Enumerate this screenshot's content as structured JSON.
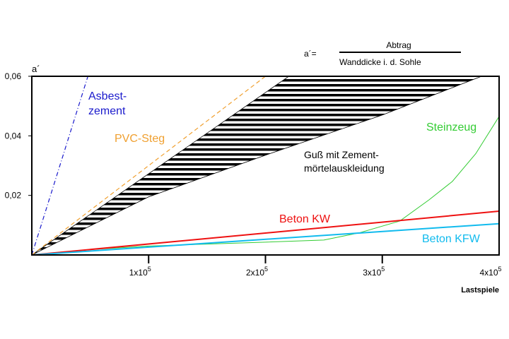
{
  "chart_data": {
    "type": "line",
    "title": "",
    "formula": {
      "lhs": "a´=",
      "numerator": "Abtrag",
      "denominator": "Wanddicke i. d. Sohle"
    },
    "ylabel": "a´",
    "xlabel": "Lastspiele",
    "xlim": [
      0,
      400000
    ],
    "ylim": [
      0,
      0.06
    ],
    "x_ticks": [
      {
        "value": 100000,
        "base": "1x10",
        "exp": "5"
      },
      {
        "value": 200000,
        "base": "2x10",
        "exp": "5"
      },
      {
        "value": 300000,
        "base": "3x10",
        "exp": "5"
      },
      {
        "value": 400000,
        "base": "4x10",
        "exp": "5"
      }
    ],
    "y_ticks": [
      {
        "value": 0.02,
        "label": "0,02"
      },
      {
        "value": 0.04,
        "label": "0,04"
      },
      {
        "value": 0.06,
        "label": "0,06"
      }
    ],
    "band": {
      "name": "Guß mit Zementmörtelauskleidung",
      "label_lines": [
        "Guß mit Zement-",
        "mörtelauskleidung"
      ],
      "upper": [
        [
          0,
          0
        ],
        [
          220000,
          0.06
        ],
        [
          385000,
          0.06
        ]
      ],
      "lower": [
        [
          0,
          0
        ],
        [
          100000,
          0.0195
        ],
        [
          200000,
          0.0335
        ],
        [
          300000,
          0.047
        ],
        [
          385000,
          0.06
        ]
      ],
      "color": "#000000"
    },
    "series": [
      {
        "name": "Asbestzement",
        "label_lines": [
          "Asbest-",
          "zement"
        ],
        "color": "#1a1acc",
        "dash": "dashdot",
        "x": [
          0,
          48000
        ],
        "y": [
          0,
          0.06
        ]
      },
      {
        "name": "PVC-Steg",
        "label_lines": [
          "PVC-Steg"
        ],
        "color": "#f0a030",
        "dash": "dashed",
        "x": [
          0,
          200000
        ],
        "y": [
          0,
          0.06
        ]
      },
      {
        "name": "Steinzeug",
        "label_lines": [
          "Steinzeug"
        ],
        "color": "#33cc33",
        "dash": "solid",
        "x": [
          0,
          50000,
          100000,
          200000,
          250000,
          280000,
          315000,
          340000,
          360000,
          380000,
          400000
        ],
        "y": [
          0,
          0.0018,
          0.003,
          0.0043,
          0.005,
          0.0074,
          0.0114,
          0.0185,
          0.0247,
          0.034,
          0.0465
        ]
      },
      {
        "name": "Beton KW",
        "label_lines": [
          "Beton KW"
        ],
        "color": "#ee1111",
        "dash": "solid",
        "x": [
          0,
          400000
        ],
        "y": [
          0,
          0.0147
        ]
      },
      {
        "name": "Beton KFW",
        "label_lines": [
          "Beton KFW"
        ],
        "color": "#11bbee",
        "dash": "solid",
        "x": [
          0,
          400000
        ],
        "y": [
          0,
          0.0105
        ]
      }
    ]
  }
}
